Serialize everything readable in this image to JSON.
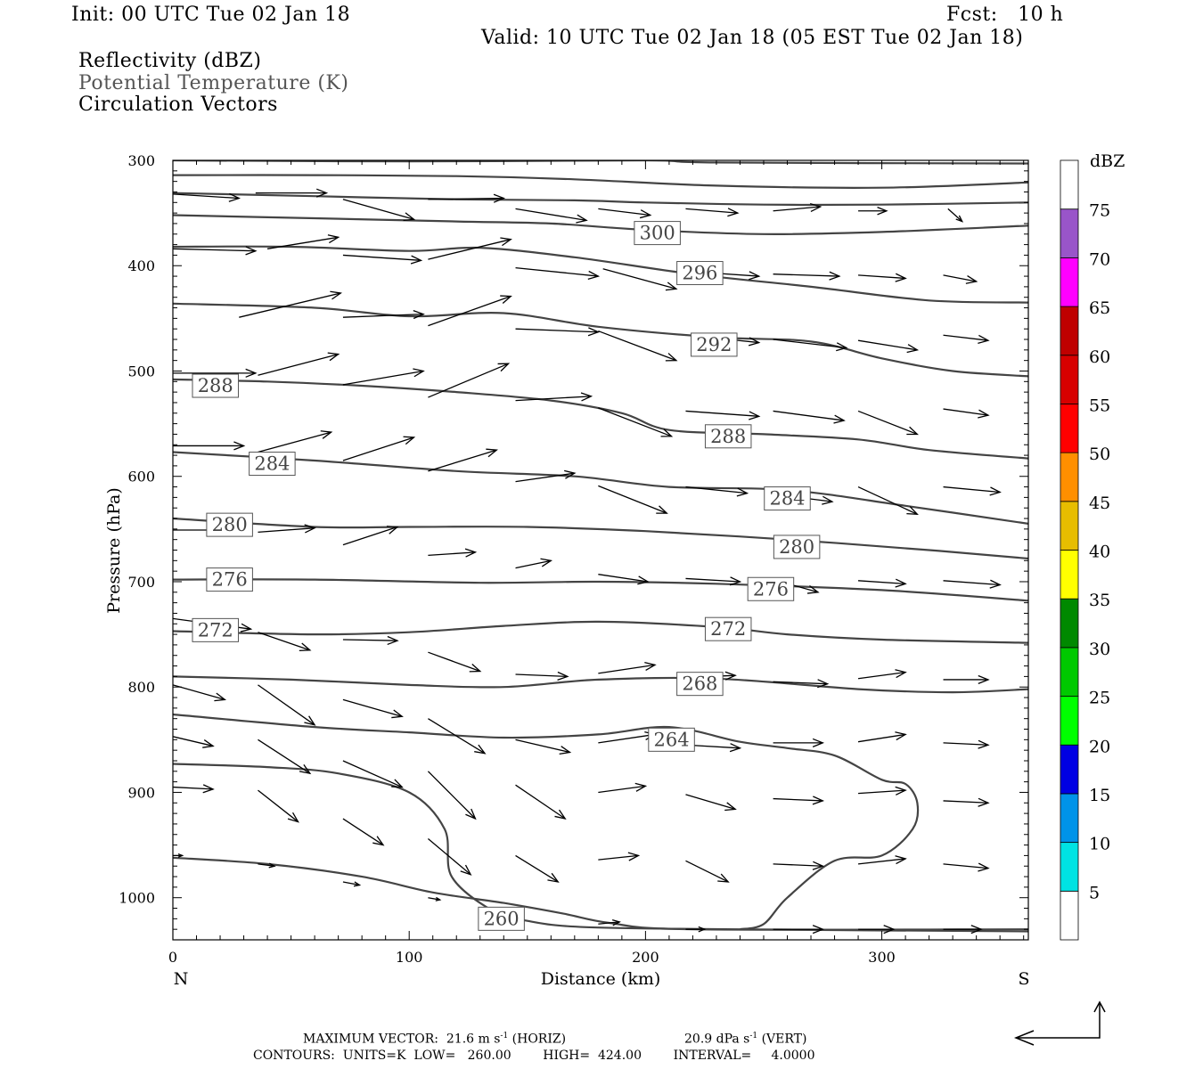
{
  "header": {
    "init": "Init: 00 UTC Tue 02 Jan 18",
    "fcst": "Fcst:   10 h",
    "valid": "Valid: 10 UTC Tue 02 Jan 18 (05 EST Tue 02 Jan 18)",
    "field1": "Reflectivity (dBZ)",
    "field2": "Potential Temperature (K)",
    "field3": "Circulation Vectors"
  },
  "footer": {
    "max_vector_a": "MAXIMUM VECTOR:  21.6 m s",
    "sup1": "-1",
    "max_vector_b": " (HORIZ)",
    "vert_a": "20.9 dPa s",
    "sup2": "-1",
    "vert_b": " (VERT)",
    "contours": "CONTOURS:  UNITS=K  LOW=   260.00        HIGH=  424.00        INTERVAL=     4.0000"
  },
  "colors": {
    "contour": "#444444",
    "colorbar": [
      "#ffffff",
      "#00e3e3",
      "#0093e9",
      "#0000e3",
      "#00ff00",
      "#00c900",
      "#008900",
      "#ffff00",
      "#e7bd00",
      "#ff8f00",
      "#ff0000",
      "#d70000",
      "#bf0000",
      "#ff00ff",
      "#9955c9",
      "#ffffff"
    ]
  },
  "chart_data": {
    "type": "contour",
    "xlabel": "Distance (km)",
    "ylabel": "Pressure (hPa)",
    "xlim": [
      0,
      362
    ],
    "ylim": [
      1040,
      300
    ],
    "x_ticks": [
      0,
      100,
      200,
      300
    ],
    "y_ticks": [
      300,
      400,
      500,
      600,
      700,
      800,
      900,
      1000
    ],
    "x_tick_labels": [
      "0",
      "100",
      "200",
      "300"
    ],
    "y_tick_labels": [
      "300",
      "400",
      "500",
      "600",
      "700",
      "800",
      "900",
      "1000"
    ],
    "left_end_label": "N",
    "right_end_label": "S",
    "colorbar": {
      "units_label": "dBZ",
      "levels": [
        "5",
        "10",
        "15",
        "20",
        "25",
        "30",
        "35",
        "40",
        "45",
        "50",
        "55",
        "60",
        "65",
        "70",
        "75"
      ]
    },
    "isotherm_labels": [
      {
        "value": "300",
        "x": 205,
        "p": 369
      },
      {
        "value": "296",
        "x": 223,
        "p": 407
      },
      {
        "value": "292",
        "x": 229,
        "p": 475
      },
      {
        "value": "288",
        "x": 18,
        "p": 514
      },
      {
        "value": "288",
        "x": 235,
        "p": 562
      },
      {
        "value": "284",
        "x": 42,
        "p": 588
      },
      {
        "value": "284",
        "x": 260,
        "p": 621
      },
      {
        "value": "280",
        "x": 24,
        "p": 646
      },
      {
        "value": "280",
        "x": 264,
        "p": 667
      },
      {
        "value": "276",
        "x": 24,
        "p": 698
      },
      {
        "value": "276",
        "x": 253,
        "p": 707
      },
      {
        "value": "272",
        "x": 18,
        "p": 746
      },
      {
        "value": "272",
        "x": 235,
        "p": 745
      },
      {
        "value": "268",
        "x": 223,
        "p": 797
      },
      {
        "value": "264",
        "x": 211,
        "p": 850
      },
      {
        "value": "260",
        "x": 139,
        "p": 1020
      }
    ],
    "isotherm_lines": [
      {
        "theta": 312,
        "points": [
          [
            0,
            300
          ],
          [
            100,
            301
          ],
          [
            200,
            300
          ],
          [
            230,
            302
          ],
          [
            362,
            303
          ]
        ]
      },
      {
        "theta": 308,
        "points": [
          [
            0,
            314
          ],
          [
            60,
            314
          ],
          [
            120,
            315
          ],
          [
            170,
            318
          ],
          [
            230,
            324
          ],
          [
            300,
            326
          ],
          [
            362,
            321
          ]
        ]
      },
      {
        "theta": 304,
        "points": [
          [
            0,
            331
          ],
          [
            60,
            334
          ],
          [
            120,
            337
          ],
          [
            170,
            338
          ],
          [
            200,
            340
          ],
          [
            250,
            342
          ],
          [
            300,
            342
          ],
          [
            362,
            340
          ]
        ]
      },
      {
        "theta": 300,
        "points": [
          [
            0,
            352
          ],
          [
            60,
            355
          ],
          [
            120,
            358
          ],
          [
            160,
            360
          ],
          [
            200,
            366
          ],
          [
            250,
            370
          ],
          [
            300,
            368
          ],
          [
            362,
            362
          ]
        ]
      },
      {
        "theta": 296,
        "points": [
          [
            0,
            382
          ],
          [
            50,
            382
          ],
          [
            100,
            386
          ],
          [
            130,
            383
          ],
          [
            170,
            392
          ],
          [
            220,
            408
          ],
          [
            270,
            420
          ],
          [
            320,
            433
          ],
          [
            362,
            435
          ]
        ]
      },
      {
        "theta": 292,
        "points": [
          [
            0,
            436
          ],
          [
            60,
            440
          ],
          [
            100,
            448
          ],
          [
            140,
            445
          ],
          [
            180,
            458
          ],
          [
            230,
            468
          ],
          [
            270,
            472
          ],
          [
            300,
            488
          ],
          [
            330,
            500
          ],
          [
            362,
            505
          ]
        ]
      },
      {
        "theta": 288,
        "points": [
          [
            0,
            508
          ],
          [
            40,
            510
          ],
          [
            80,
            514
          ],
          [
            120,
            520
          ],
          [
            160,
            528
          ],
          [
            190,
            540
          ],
          [
            210,
            556
          ],
          [
            250,
            560
          ],
          [
            290,
            565
          ],
          [
            320,
            575
          ],
          [
            362,
            583
          ]
        ]
      },
      {
        "theta": 284,
        "points": [
          [
            0,
            577
          ],
          [
            60,
            585
          ],
          [
            120,
            595
          ],
          [
            170,
            600
          ],
          [
            210,
            610
          ],
          [
            260,
            613
          ],
          [
            310,
            628
          ],
          [
            362,
            645
          ]
        ]
      },
      {
        "theta": 280,
        "points": [
          [
            0,
            640
          ],
          [
            60,
            648
          ],
          [
            100,
            648
          ],
          [
            150,
            648
          ],
          [
            200,
            652
          ],
          [
            260,
            660
          ],
          [
            320,
            670
          ],
          [
            362,
            678
          ]
        ]
      },
      {
        "theta": 276,
        "points": [
          [
            0,
            698
          ],
          [
            60,
            698
          ],
          [
            130,
            701
          ],
          [
            180,
            700
          ],
          [
            230,
            702
          ],
          [
            300,
            708
          ],
          [
            362,
            718
          ]
        ]
      },
      {
        "theta": 272,
        "points": [
          [
            0,
            747
          ],
          [
            60,
            750
          ],
          [
            100,
            748
          ],
          [
            140,
            742
          ],
          [
            180,
            738
          ],
          [
            230,
            743
          ],
          [
            260,
            750
          ],
          [
            300,
            755
          ],
          [
            362,
            758
          ]
        ]
      },
      {
        "theta": 268,
        "points": [
          [
            0,
            790
          ],
          [
            50,
            793
          ],
          [
            100,
            798
          ],
          [
            140,
            800
          ],
          [
            180,
            793
          ],
          [
            230,
            792
          ],
          [
            290,
            802
          ],
          [
            330,
            805
          ],
          [
            362,
            802
          ]
        ]
      },
      {
        "theta": 264,
        "points": [
          [
            0,
            826
          ],
          [
            60,
            838
          ],
          [
            100,
            843
          ],
          [
            140,
            848
          ],
          [
            180,
            845
          ],
          [
            210,
            838
          ],
          [
            240,
            852
          ],
          [
            260,
            858
          ],
          [
            280,
            865
          ],
          [
            300,
            888
          ],
          [
            310,
            892
          ],
          [
            315,
            910
          ],
          [
            313,
            935
          ],
          [
            300,
            960
          ],
          [
            280,
            965
          ],
          [
            260,
            1000
          ],
          [
            250,
            1025
          ],
          [
            240,
            1030
          ]
        ]
      },
      {
        "theta": 264,
        "points": [
          [
            0,
            873
          ],
          [
            40,
            876
          ],
          [
            70,
            882
          ],
          [
            100,
            900
          ],
          [
            115,
            935
          ],
          [
            118,
            980
          ],
          [
            135,
            1012
          ],
          [
            150,
            1022
          ],
          [
            175,
            1028
          ],
          [
            240,
            1030
          ],
          [
            362,
            1032
          ]
        ]
      },
      {
        "theta": 260,
        "points": [
          [
            0,
            962
          ],
          [
            40,
            968
          ],
          [
            80,
            980
          ],
          [
            110,
            995
          ],
          [
            140,
            1005
          ],
          [
            165,
            1015
          ],
          [
            185,
            1024
          ],
          [
            220,
            1030
          ],
          [
            362,
            1030
          ]
        ]
      }
    ],
    "vectors": [
      [
        0,
        332,
        28,
        336
      ],
      [
        35,
        331,
        65,
        331
      ],
      [
        72,
        337,
        102,
        356
      ],
      [
        108,
        337,
        140,
        336
      ],
      [
        145,
        346,
        175,
        357
      ],
      [
        180,
        346,
        202,
        352
      ],
      [
        217,
        346,
        239,
        350
      ],
      [
        254,
        348,
        274,
        344
      ],
      [
        290,
        348,
        302,
        348
      ],
      [
        328,
        346,
        334,
        358
      ],
      [
        0,
        384,
        35,
        386
      ],
      [
        40,
        384,
        70,
        373
      ],
      [
        72,
        390,
        105,
        395
      ],
      [
        108,
        394,
        143,
        375
      ],
      [
        145,
        402,
        180,
        410
      ],
      [
        182,
        403,
        213,
        422
      ],
      [
        222,
        406,
        248,
        410
      ],
      [
        254,
        408,
        282,
        410
      ],
      [
        290,
        409,
        310,
        412
      ],
      [
        326,
        409,
        340,
        415
      ],
      [
        28,
        449,
        71,
        426
      ],
      [
        72,
        449,
        106,
        446
      ],
      [
        108,
        457,
        143,
        429
      ],
      [
        145,
        460,
        180,
        463
      ],
      [
        180,
        462,
        213,
        490
      ],
      [
        235,
        470,
        248,
        473
      ],
      [
        254,
        470,
        285,
        478
      ],
      [
        290,
        471,
        315,
        480
      ],
      [
        326,
        466,
        345,
        471
      ],
      [
        0,
        502,
        35,
        502
      ],
      [
        36,
        504,
        70,
        484
      ],
      [
        72,
        513,
        106,
        500
      ],
      [
        108,
        525,
        142,
        493
      ],
      [
        145,
        528,
        177,
        524
      ],
      [
        180,
        535,
        211,
        562
      ],
      [
        217,
        538,
        248,
        543
      ],
      [
        254,
        538,
        284,
        547
      ],
      [
        290,
        538,
        315,
        560
      ],
      [
        326,
        536,
        345,
        542
      ],
      [
        0,
        571,
        30,
        571
      ],
      [
        36,
        577,
        67,
        558
      ],
      [
        72,
        585,
        102,
        563
      ],
      [
        108,
        595,
        137,
        575
      ],
      [
        145,
        605,
        170,
        597
      ],
      [
        180,
        609,
        209,
        635
      ],
      [
        217,
        610,
        243,
        616
      ],
      [
        254,
        617,
        279,
        624
      ],
      [
        290,
        610,
        315,
        636
      ],
      [
        326,
        610,
        350,
        615
      ],
      [
        0,
        651,
        33,
        651
      ],
      [
        36,
        653,
        60,
        649
      ],
      [
        72,
        665,
        95,
        648
      ],
      [
        108,
        675,
        128,
        672
      ],
      [
        145,
        687,
        160,
        680
      ],
      [
        180,
        693,
        201,
        700
      ],
      [
        217,
        697,
        240,
        700
      ],
      [
        254,
        698,
        273,
        710
      ],
      [
        290,
        699,
        310,
        702
      ],
      [
        326,
        699,
        350,
        703
      ],
      [
        0,
        735,
        33,
        745
      ],
      [
        36,
        748,
        58,
        765
      ],
      [
        72,
        755,
        95,
        756
      ],
      [
        108,
        767,
        130,
        785
      ],
      [
        145,
        788,
        167,
        790
      ],
      [
        180,
        787,
        204,
        779
      ],
      [
        217,
        791,
        238,
        789
      ],
      [
        254,
        795,
        277,
        797
      ],
      [
        290,
        792,
        310,
        786
      ],
      [
        326,
        793,
        345,
        793
      ],
      [
        0,
        798,
        22,
        812
      ],
      [
        36,
        798,
        60,
        836
      ],
      [
        72,
        812,
        97,
        828
      ],
      [
        108,
        830,
        132,
        863
      ],
      [
        145,
        850,
        168,
        862
      ],
      [
        180,
        853,
        204,
        845
      ],
      [
        217,
        855,
        240,
        858
      ],
      [
        254,
        853,
        275,
        853
      ],
      [
        290,
        852,
        310,
        845
      ],
      [
        326,
        853,
        345,
        855
      ],
      [
        0,
        847,
        17,
        856
      ],
      [
        36,
        850,
        58,
        882
      ],
      [
        72,
        870,
        97,
        895
      ],
      [
        108,
        880,
        128,
        925
      ],
      [
        145,
        893,
        166,
        925
      ],
      [
        180,
        900,
        200,
        894
      ],
      [
        217,
        902,
        238,
        916
      ],
      [
        254,
        906,
        275,
        908
      ],
      [
        290,
        901,
        310,
        898
      ],
      [
        326,
        908,
        345,
        910
      ],
      [
        0,
        895,
        17,
        897
      ],
      [
        36,
        898,
        53,
        928
      ],
      [
        72,
        925,
        89,
        950
      ],
      [
        108,
        944,
        126,
        978
      ],
      [
        145,
        960,
        163,
        985
      ],
      [
        180,
        964,
        197,
        960
      ],
      [
        217,
        965,
        235,
        985
      ],
      [
        254,
        968,
        275,
        970
      ],
      [
        290,
        968,
        310,
        963
      ],
      [
        326,
        968,
        345,
        972
      ],
      [
        0,
        960,
        4,
        960
      ],
      [
        36,
        968,
        43,
        970
      ],
      [
        72,
        985,
        79,
        988
      ],
      [
        108,
        1000,
        113,
        1002
      ],
      [
        180,
        1025,
        189,
        1023
      ],
      [
        217,
        1030,
        225,
        1030
      ],
      [
        254,
        1030,
        275,
        1030
      ],
      [
        290,
        1030,
        305,
        1030
      ],
      [
        326,
        1030,
        342,
        1030
      ]
    ]
  }
}
